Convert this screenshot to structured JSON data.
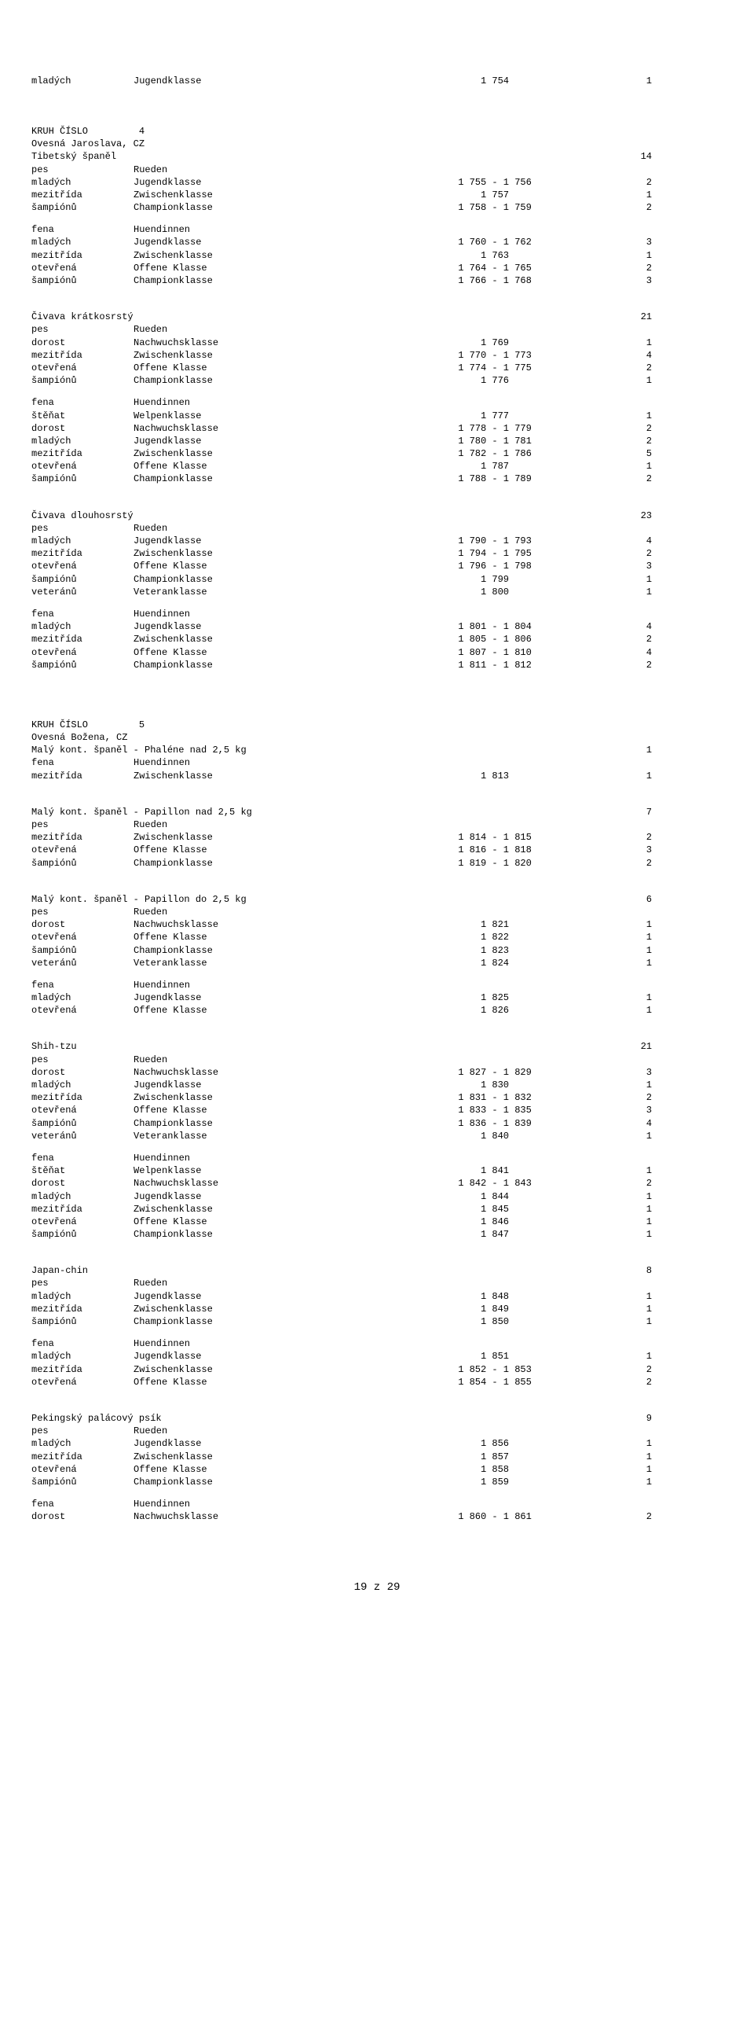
{
  "page_number": "19 z 29",
  "top_row": {
    "cat_cz": "mladých",
    "cat_de": "Jugendklasse",
    "range": "1 754",
    "n": "1"
  },
  "ring4": {
    "label": "KRUH ČÍSLO         4",
    "judge": "Ovesná Jaroslava, CZ",
    "groups": [
      {
        "breed": "Tibetský španěl",
        "count": "14",
        "sexes": [
          {
            "sex_cz": "pes",
            "sex_de": "Rueden",
            "rows": [
              {
                "cat_cz": "mladých",
                "cat_de": "Jugendklasse",
                "range": "1 755 - 1 756",
                "n": "2"
              },
              {
                "cat_cz": "mezitřída",
                "cat_de": "Zwischenklasse",
                "range": "1 757",
                "n": "1"
              },
              {
                "cat_cz": "šampiónů",
                "cat_de": "Championklasse",
                "range": "1 758 - 1 759",
                "n": "2"
              }
            ]
          },
          {
            "sex_cz": "fena",
            "sex_de": "Huendinnen",
            "rows": [
              {
                "cat_cz": "mladých",
                "cat_de": "Jugendklasse",
                "range": "1 760 - 1 762",
                "n": "3"
              },
              {
                "cat_cz": "mezitřída",
                "cat_de": "Zwischenklasse",
                "range": "1 763",
                "n": "1"
              },
              {
                "cat_cz": "otevřená",
                "cat_de": "Offene Klasse",
                "range": "1 764 - 1 765",
                "n": "2"
              },
              {
                "cat_cz": "šampiónů",
                "cat_de": "Championklasse",
                "range": "1 766 - 1 768",
                "n": "3"
              }
            ]
          }
        ]
      },
      {
        "breed": "Čivava krátkosrstý",
        "count": "21",
        "sexes": [
          {
            "sex_cz": "pes",
            "sex_de": "Rueden",
            "rows": [
              {
                "cat_cz": "dorost",
                "cat_de": "Nachwuchsklasse",
                "range": "1 769",
                "n": "1"
              },
              {
                "cat_cz": "mezitřída",
                "cat_de": "Zwischenklasse",
                "range": "1 770 - 1 773",
                "n": "4"
              },
              {
                "cat_cz": "otevřená",
                "cat_de": "Offene Klasse",
                "range": "1 774 - 1 775",
                "n": "2"
              },
              {
                "cat_cz": "šampiónů",
                "cat_de": "Championklasse",
                "range": "1 776",
                "n": "1"
              }
            ]
          },
          {
            "sex_cz": "fena",
            "sex_de": "Huendinnen",
            "rows": [
              {
                "cat_cz": "štěňat",
                "cat_de": "Welpenklasse",
                "range": "1 777",
                "n": "1"
              },
              {
                "cat_cz": "dorost",
                "cat_de": "Nachwuchsklasse",
                "range": "1 778 - 1 779",
                "n": "2"
              },
              {
                "cat_cz": "mladých",
                "cat_de": "Jugendklasse",
                "range": "1 780 - 1 781",
                "n": "2"
              },
              {
                "cat_cz": "mezitřída",
                "cat_de": "Zwischenklasse",
                "range": "1 782 - 1 786",
                "n": "5"
              },
              {
                "cat_cz": "otevřená",
                "cat_de": "Offene Klasse",
                "range": "1 787",
                "n": "1"
              },
              {
                "cat_cz": "šampiónů",
                "cat_de": "Championklasse",
                "range": "1 788 - 1 789",
                "n": "2"
              }
            ]
          }
        ]
      },
      {
        "breed": "Čivava dlouhosrstý",
        "count": "23",
        "sexes": [
          {
            "sex_cz": "pes",
            "sex_de": "Rueden",
            "rows": [
              {
                "cat_cz": "mladých",
                "cat_de": "Jugendklasse",
                "range": "1 790 - 1 793",
                "n": "4"
              },
              {
                "cat_cz": "mezitřída",
                "cat_de": "Zwischenklasse",
                "range": "1 794 - 1 795",
                "n": "2"
              },
              {
                "cat_cz": "otevřená",
                "cat_de": "Offene Klasse",
                "range": "1 796 - 1 798",
                "n": "3"
              },
              {
                "cat_cz": "šampiónů",
                "cat_de": "Championklasse",
                "range": "1 799",
                "n": "1"
              },
              {
                "cat_cz": "veteránů",
                "cat_de": "Veteranklasse",
                "range": "1 800",
                "n": "1"
              }
            ]
          },
          {
            "sex_cz": "fena",
            "sex_de": "Huendinnen",
            "rows": [
              {
                "cat_cz": "mladých",
                "cat_de": "Jugendklasse",
                "range": "1 801 - 1 804",
                "n": "4"
              },
              {
                "cat_cz": "mezitřída",
                "cat_de": "Zwischenklasse",
                "range": "1 805 - 1 806",
                "n": "2"
              },
              {
                "cat_cz": "otevřená",
                "cat_de": "Offene Klasse",
                "range": "1 807 - 1 810",
                "n": "4"
              },
              {
                "cat_cz": "šampiónů",
                "cat_de": "Championklasse",
                "range": "1 811 - 1 812",
                "n": "2"
              }
            ]
          }
        ]
      }
    ]
  },
  "ring5": {
    "label": "KRUH ČÍSLO         5",
    "judge": "Ovesná Božena, CZ",
    "groups": [
      {
        "breed": "Malý kont. španěl - Phaléne nad 2,5 kg",
        "count": "1",
        "sexes": [
          {
            "sex_cz": "fena",
            "sex_de": "Huendinnen",
            "rows": [
              {
                "cat_cz": "mezitřída",
                "cat_de": "Zwischenklasse",
                "range": "1 813",
                "n": "1"
              }
            ]
          }
        ]
      },
      {
        "breed": "Malý kont. španěl - Papillon nad 2,5 kg",
        "count": "7",
        "sexes": [
          {
            "sex_cz": "pes",
            "sex_de": "Rueden",
            "rows": [
              {
                "cat_cz": "mezitřída",
                "cat_de": "Zwischenklasse",
                "range": "1 814 - 1 815",
                "n": "2"
              },
              {
                "cat_cz": "otevřená",
                "cat_de": "Offene Klasse",
                "range": "1 816 - 1 818",
                "n": "3"
              },
              {
                "cat_cz": "šampiónů",
                "cat_de": "Championklasse",
                "range": "1 819 - 1 820",
                "n": "2"
              }
            ]
          }
        ]
      },
      {
        "breed": "Malý kont. španěl - Papillon do 2,5 kg",
        "count": "6",
        "sexes": [
          {
            "sex_cz": "pes",
            "sex_de": "Rueden",
            "rows": [
              {
                "cat_cz": "dorost",
                "cat_de": "Nachwuchsklasse",
                "range": "1 821",
                "n": "1"
              },
              {
                "cat_cz": "otevřená",
                "cat_de": "Offene Klasse",
                "range": "1 822",
                "n": "1"
              },
              {
                "cat_cz": "šampiónů",
                "cat_de": "Championklasse",
                "range": "1 823",
                "n": "1"
              },
              {
                "cat_cz": "veteránů",
                "cat_de": "Veteranklasse",
                "range": "1 824",
                "n": "1"
              }
            ]
          },
          {
            "sex_cz": "fena",
            "sex_de": "Huendinnen",
            "rows": [
              {
                "cat_cz": "mladých",
                "cat_de": "Jugendklasse",
                "range": "1 825",
                "n": "1"
              },
              {
                "cat_cz": "otevřená",
                "cat_de": "Offene Klasse",
                "range": "1 826",
                "n": "1"
              }
            ]
          }
        ]
      },
      {
        "breed": "Shih-tzu",
        "count": "21",
        "sexes": [
          {
            "sex_cz": "pes",
            "sex_de": "Rueden",
            "rows": [
              {
                "cat_cz": "dorost",
                "cat_de": "Nachwuchsklasse",
                "range": "1 827 - 1 829",
                "n": "3"
              },
              {
                "cat_cz": "mladých",
                "cat_de": "Jugendklasse",
                "range": "1 830",
                "n": "1"
              },
              {
                "cat_cz": "mezitřída",
                "cat_de": "Zwischenklasse",
                "range": "1 831 - 1 832",
                "n": "2"
              },
              {
                "cat_cz": "otevřená",
                "cat_de": "Offene Klasse",
                "range": "1 833 - 1 835",
                "n": "3"
              },
              {
                "cat_cz": "šampiónů",
                "cat_de": "Championklasse",
                "range": "1 836 - 1 839",
                "n": "4"
              },
              {
                "cat_cz": "veteránů",
                "cat_de": "Veteranklasse",
                "range": "1 840",
                "n": "1"
              }
            ]
          },
          {
            "sex_cz": "fena",
            "sex_de": "Huendinnen",
            "rows": [
              {
                "cat_cz": "štěňat",
                "cat_de": "Welpenklasse",
                "range": "1 841",
                "n": "1"
              },
              {
                "cat_cz": "dorost",
                "cat_de": "Nachwuchsklasse",
                "range": "1 842 - 1 843",
                "n": "2"
              },
              {
                "cat_cz": "mladých",
                "cat_de": "Jugendklasse",
                "range": "1 844",
                "n": "1"
              },
              {
                "cat_cz": "mezitřída",
                "cat_de": "Zwischenklasse",
                "range": "1 845",
                "n": "1"
              },
              {
                "cat_cz": "otevřená",
                "cat_de": "Offene Klasse",
                "range": "1 846",
                "n": "1"
              },
              {
                "cat_cz": "šampiónů",
                "cat_de": "Championklasse",
                "range": "1 847",
                "n": "1"
              }
            ]
          }
        ]
      },
      {
        "breed": "Japan-chin",
        "count": "8",
        "sexes": [
          {
            "sex_cz": "pes",
            "sex_de": "Rueden",
            "rows": [
              {
                "cat_cz": "mladých",
                "cat_de": "Jugendklasse",
                "range": "1 848",
                "n": "1"
              },
              {
                "cat_cz": "mezitřída",
                "cat_de": "Zwischenklasse",
                "range": "1 849",
                "n": "1"
              },
              {
                "cat_cz": "šampiónů",
                "cat_de": "Championklasse",
                "range": "1 850",
                "n": "1"
              }
            ]
          },
          {
            "sex_cz": "fena",
            "sex_de": "Huendinnen",
            "rows": [
              {
                "cat_cz": "mladých",
                "cat_de": "Jugendklasse",
                "range": "1 851",
                "n": "1"
              },
              {
                "cat_cz": "mezitřída",
                "cat_de": "Zwischenklasse",
                "range": "1 852 - 1 853",
                "n": "2"
              },
              {
                "cat_cz": "otevřená",
                "cat_de": "Offene Klasse",
                "range": "1 854 - 1 855",
                "n": "2"
              }
            ]
          }
        ]
      },
      {
        "breed": "Pekingský palácový psík",
        "count": "9",
        "sexes": [
          {
            "sex_cz": "pes",
            "sex_de": "Rueden",
            "rows": [
              {
                "cat_cz": "mladých",
                "cat_de": "Jugendklasse",
                "range": "1 856",
                "n": "1"
              },
              {
                "cat_cz": "mezitřída",
                "cat_de": "Zwischenklasse",
                "range": "1 857",
                "n": "1"
              },
              {
                "cat_cz": "otevřená",
                "cat_de": "Offene Klasse",
                "range": "1 858",
                "n": "1"
              },
              {
                "cat_cz": "šampiónů",
                "cat_de": "Championklasse",
                "range": "1 859",
                "n": "1"
              }
            ]
          },
          {
            "sex_cz": "fena",
            "sex_de": "Huendinnen",
            "rows": [
              {
                "cat_cz": "dorost",
                "cat_de": "Nachwuchsklasse",
                "range": "1 860 - 1 861",
                "n": "2"
              }
            ]
          }
        ]
      }
    ]
  }
}
